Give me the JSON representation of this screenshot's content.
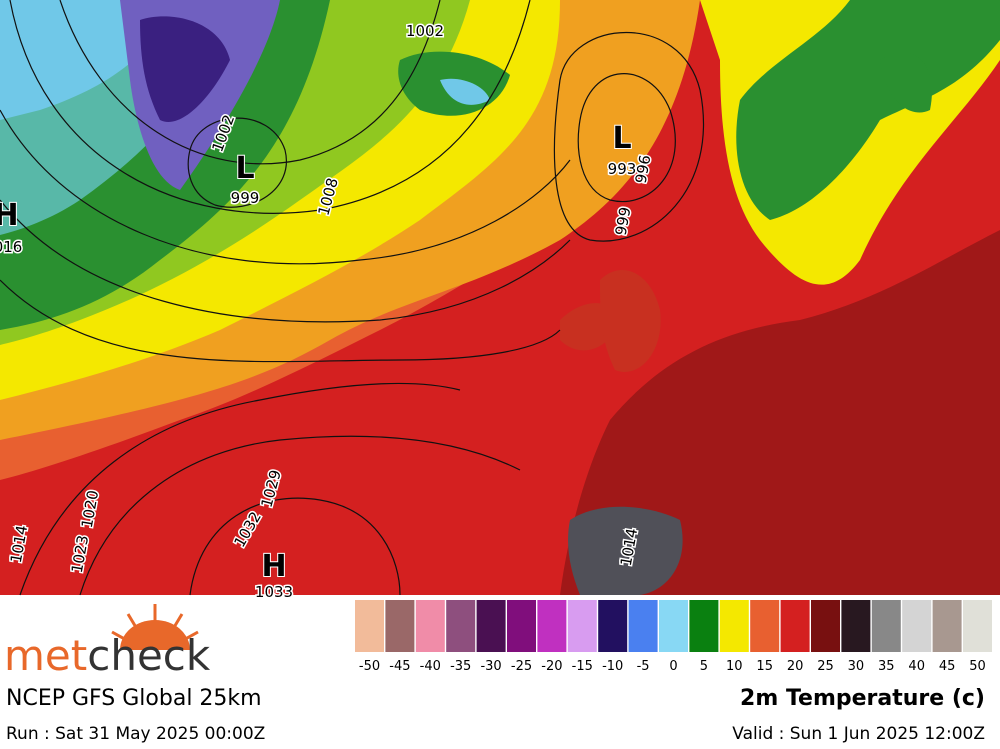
{
  "map": {
    "labels": [
      {
        "text": "1002"
      },
      {
        "text": "L"
      },
      {
        "text": "999"
      },
      {
        "text": "1002"
      },
      {
        "text": "1008"
      },
      {
        "text": "L"
      },
      {
        "text": "993"
      },
      {
        "text": "996"
      },
      {
        "text": "999"
      },
      {
        "text": "H"
      },
      {
        "text": "016"
      },
      {
        "text": "1020"
      },
      {
        "text": "1023"
      },
      {
        "text": "1014"
      },
      {
        "text": "1029"
      },
      {
        "text": "1032"
      },
      {
        "text": "H"
      },
      {
        "text": "1033"
      },
      {
        "text": "1014"
      }
    ]
  },
  "legend": {
    "items": [
      {
        "label": "-50",
        "color": "#f2bb9a"
      },
      {
        "label": "-45",
        "color": "#9a6868"
      },
      {
        "label": "-40",
        "color": "#f08ca8"
      },
      {
        "label": "-35",
        "color": "#8e4f7e"
      },
      {
        "label": "-30",
        "color": "#4a1052"
      },
      {
        "label": "-25",
        "color": "#800e7c"
      },
      {
        "label": "-20",
        "color": "#c030c0"
      },
      {
        "label": "-15",
        "color": "#d89cf0"
      },
      {
        "label": "-10",
        "color": "#221060"
      },
      {
        "label": "-5",
        "color": "#4a80f0"
      },
      {
        "label": "0",
        "color": "#88d8f4"
      },
      {
        "label": "5",
        "color": "#0a8010"
      },
      {
        "label": "10",
        "color": "#f4e800"
      },
      {
        "label": "15",
        "color": "#e86030"
      },
      {
        "label": "20",
        "color": "#d42020"
      },
      {
        "label": "25",
        "color": "#781010"
      },
      {
        "label": "30",
        "color": "#281820"
      },
      {
        "label": "35",
        "color": "#888888"
      },
      {
        "label": "40",
        "color": "#d4d4d4"
      },
      {
        "label": "45",
        "color": "#a89890"
      },
      {
        "label": "50",
        "color": "#e0e0d8"
      }
    ]
  },
  "brand": {
    "met": "met",
    "check": "check"
  },
  "footer": {
    "model": "NCEP GFS Global 25km",
    "run": "Run : Sat 31 May 2025 00:00Z",
    "product": "2m Temperature (c)",
    "valid": "Valid : Sun 1 Jun 2025 12:00Z"
  }
}
